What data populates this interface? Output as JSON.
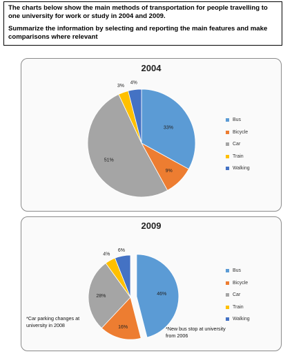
{
  "task": {
    "line1": "The charts below show the main methods of transportation for people travelling to one university for work or study in 2004 and 2009.",
    "line2": "Summarize the information by selecting and reporting the main features and make comparisons where relevant"
  },
  "colors": {
    "Bus": "#5b9bd5",
    "Bicycle": "#ed7d31",
    "Car": "#a5a5a5",
    "Train": "#ffc000",
    "Walking": "#4472c4"
  },
  "notes": {
    "car_parking": "*Car parking changes at university in 2008",
    "bus_stop": "*New bus stop at university from 2006"
  },
  "chart_data": [
    {
      "type": "pie",
      "title": "2004",
      "categories": [
        "Bus",
        "Bicycle",
        "Car",
        "Train",
        "Walking"
      ],
      "values": [
        33,
        9,
        51,
        3,
        4
      ],
      "labels": [
        "33%",
        "9%",
        "51%",
        "3%",
        "4%"
      ],
      "legend": "right"
    },
    {
      "type": "pie",
      "title": "2009",
      "categories": [
        "Bus",
        "Bicycle",
        "Car",
        "Train",
        "Walking"
      ],
      "values": [
        46,
        16,
        28,
        4,
        6
      ],
      "labels": [
        "46%",
        "16%",
        "28%",
        "4%",
        "6%"
      ],
      "legend": "right"
    }
  ]
}
